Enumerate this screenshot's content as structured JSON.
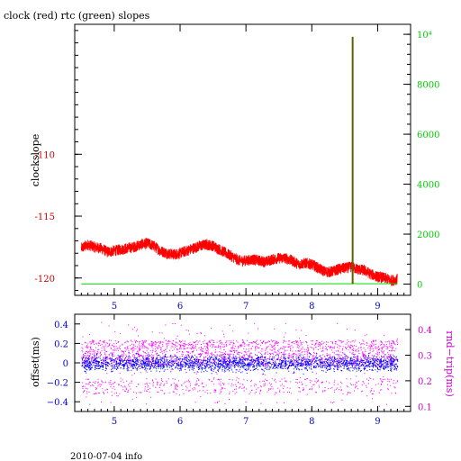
{
  "chart_data": [
    {
      "type": "line",
      "title": "clock (red) rtc (green) slopes",
      "ylabel_left": "clockslope",
      "xlim": [
        4.4,
        9.5
      ],
      "x_ticks": [
        5,
        6,
        7,
        8,
        9
      ],
      "y_left_lim": [
        -121.4,
        -99.5
      ],
      "y_left_ticks": [
        -110,
        -115,
        -120
      ],
      "y_right_lim": [
        -450,
        10400
      ],
      "y_right_ticks": [
        {
          "value": 10000,
          "label": "10⁴"
        },
        {
          "value": 8000,
          "label": "8000"
        },
        {
          "value": 6000,
          "label": "6000"
        },
        {
          "value": 4000,
          "label": "4000"
        },
        {
          "value": 2000,
          "label": "2000"
        },
        {
          "value": 0,
          "label": "0"
        }
      ],
      "colors": {
        "clock": "#ff0000",
        "rtc": "#00e000",
        "spike": "#606000",
        "axis_left": "#cc0000",
        "axis_right": "#00cc00"
      },
      "series": [
        {
          "key": "clock",
          "axis": "left",
          "x": [
            4.5,
            4.6,
            4.7,
            4.8,
            4.9,
            5.0,
            5.1,
            5.2,
            5.3,
            5.4,
            5.5,
            5.6,
            5.7,
            5.8,
            5.9,
            6.0,
            6.1,
            6.2,
            6.3,
            6.4,
            6.5,
            6.6,
            6.7,
            6.8,
            6.9,
            7.0,
            7.1,
            7.2,
            7.3,
            7.4,
            7.5,
            7.6,
            7.7,
            7.8,
            7.9,
            8.0,
            8.1,
            8.2,
            8.3,
            8.4,
            8.5,
            8.6,
            8.7,
            8.8,
            8.9,
            9.0,
            9.1,
            9.2,
            9.3
          ],
          "y": [
            -117.6,
            -117.3,
            -117.5,
            -117.6,
            -117.9,
            -117.8,
            -117.7,
            -117.6,
            -117.5,
            -117.3,
            -117.2,
            -117.4,
            -117.8,
            -118.0,
            -118.1,
            -118.0,
            -117.8,
            -117.6,
            -117.4,
            -117.3,
            -117.4,
            -117.7,
            -118.0,
            -118.3,
            -118.6,
            -118.6,
            -118.5,
            -118.6,
            -118.7,
            -118.5,
            -118.4,
            -118.4,
            -118.6,
            -118.9,
            -118.8,
            -118.9,
            -119.2,
            -119.5,
            -119.5,
            -119.3,
            -119.2,
            -119.1,
            -119.3,
            -119.4,
            -119.7,
            -119.9,
            -120.0,
            -120.2,
            -120.1
          ],
          "noise": 0.45
        },
        {
          "key": "rtc",
          "axis": "right",
          "x": [
            4.5,
            5.0,
            5.5,
            6.0,
            6.5,
            7.0,
            7.5,
            8.0,
            8.5,
            8.6,
            8.63,
            8.7,
            9.0,
            9.3
          ],
          "y": [
            5,
            5,
            5,
            5,
            5,
            15,
            15,
            15,
            15,
            15,
            30,
            15,
            15,
            15
          ]
        },
        {
          "key": "spike",
          "axis": "right",
          "x": [
            8.62,
            8.62
          ],
          "y": [
            0,
            9900
          ]
        }
      ]
    },
    {
      "type": "scatter",
      "ylabel_left": "offset(ms)",
      "ylabel_right": "rnd−trip(ms)",
      "xlim": [
        4.4,
        9.5
      ],
      "x_ticks": [
        5,
        6,
        7,
        8,
        9
      ],
      "y_left_lim": [
        -0.5,
        0.5
      ],
      "y_left_ticks": [
        {
          "value": 0.4,
          "label": "0.4"
        },
        {
          "value": 0.2,
          "label": "0.2"
        },
        {
          "value": 0,
          "label": "0"
        },
        {
          "value": -0.2,
          "label": "−0.2"
        },
        {
          "value": -0.4,
          "label": "−0.4"
        }
      ],
      "y_right_lim": [
        0.08,
        0.46
      ],
      "y_right_ticks": [
        0.4,
        0.3,
        0.2,
        0.1
      ],
      "x_range_data": [
        4.5,
        9.3
      ],
      "colors": {
        "offset": "#0000ff",
        "rndtrip": "#ff00ff",
        "axis_left": "#0000cc",
        "axis_right": "#cc00cc"
      },
      "series": [
        {
          "key": "offset",
          "axis": "left",
          "center": 0.0,
          "spread": 0.06
        },
        {
          "key": "rndtrip",
          "axis": "right",
          "band_main": [
            0.26,
            0.36
          ],
          "band_low": [
            0.15,
            0.21
          ],
          "outlier_max": 0.43
        }
      ]
    }
  ],
  "footer": "2010-07-04 info"
}
